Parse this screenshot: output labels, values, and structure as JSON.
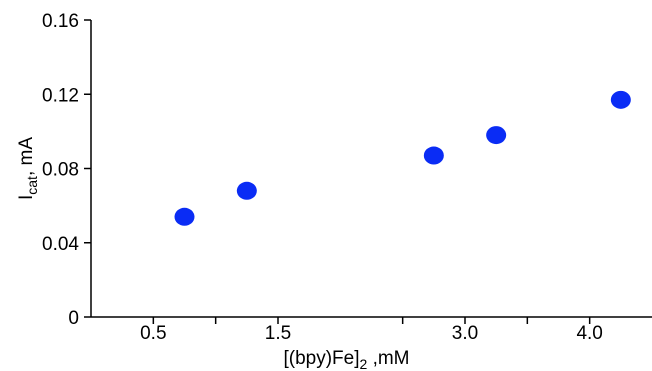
{
  "chart_data": {
    "type": "scatter",
    "title": "",
    "xlabel": {
      "main": "[(bpy)Fe]",
      "sub": "2",
      "tail": " ,mM"
    },
    "ylabel": {
      "main": "I",
      "sub": "cat",
      "tail": ", mA"
    },
    "xlim": [
      0,
      4.5
    ],
    "ylim": [
      0,
      0.16
    ],
    "x_ticks": [
      {
        "value": 0.5,
        "label": "0.5"
      },
      {
        "value": 1.5,
        "label": "1.5"
      },
      {
        "value": 3.0,
        "label": "3.0"
      },
      {
        "value": 4.0,
        "label": "4.0"
      }
    ],
    "x_minor_ticks": [
      1.0,
      2.5,
      3.5
    ],
    "y_ticks": [
      {
        "value": 0,
        "label": "0"
      },
      {
        "value": 0.04,
        "label": "0.04"
      },
      {
        "value": 0.08,
        "label": "0.08"
      },
      {
        "value": 0.12,
        "label": "0.12"
      },
      {
        "value": 0.16,
        "label": "0.16"
      }
    ],
    "series": [
      {
        "color": "#0a2cf5",
        "points": [
          {
            "x": 0.75,
            "y": 0.054
          },
          {
            "x": 1.25,
            "y": 0.068
          },
          {
            "x": 2.75,
            "y": 0.087
          },
          {
            "x": 3.25,
            "y": 0.098
          },
          {
            "x": 4.25,
            "y": 0.117
          }
        ]
      }
    ],
    "grid": false,
    "legend": "none"
  }
}
